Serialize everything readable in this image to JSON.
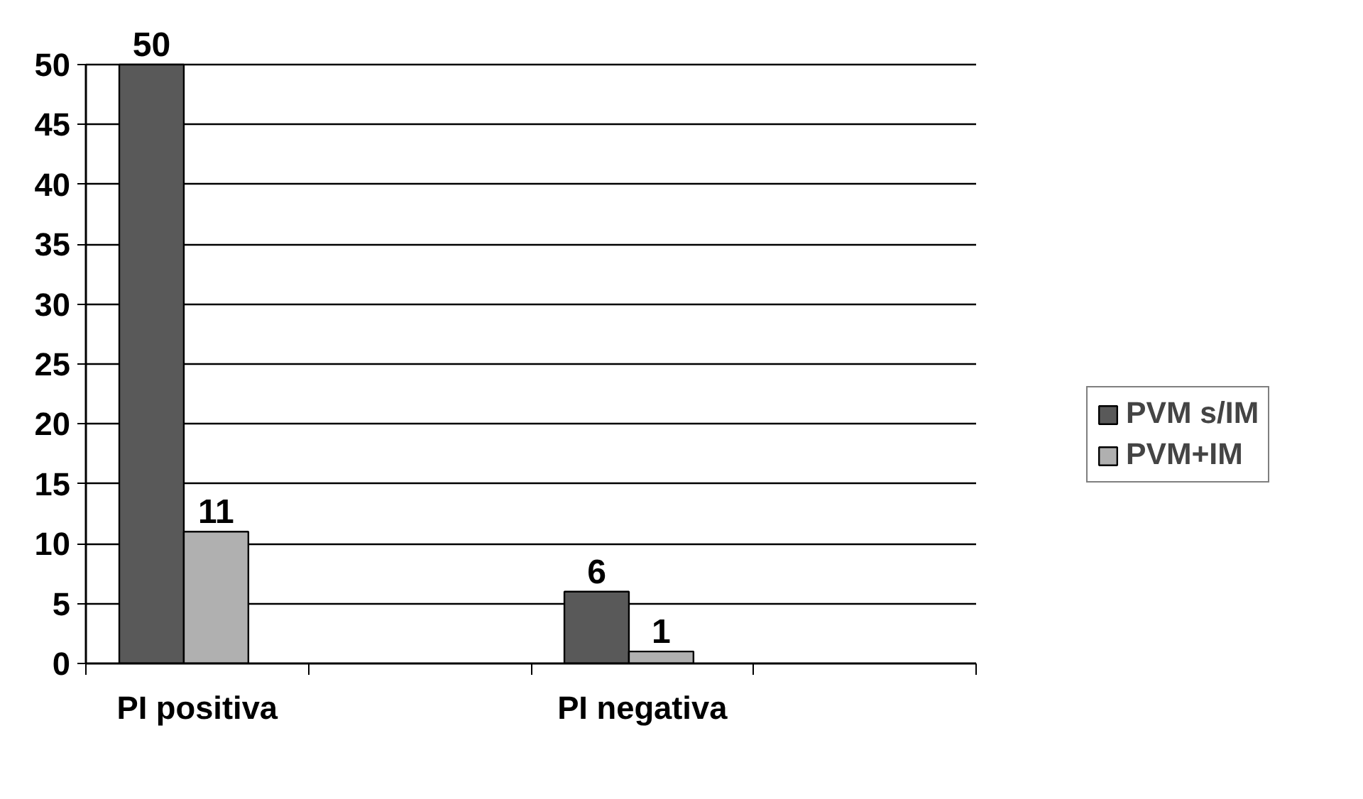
{
  "chart_data": {
    "type": "bar",
    "categories": [
      "PI positiva",
      null,
      "PI negativa",
      null
    ],
    "series": [
      {
        "name": "PVM s/IM",
        "color": "#595959",
        "values": [
          50,
          null,
          6,
          null
        ]
      },
      {
        "name": "PVM+IM",
        "color": "#b0b0b0",
        "values": [
          11,
          null,
          1,
          null
        ]
      }
    ],
    "ylim": [
      0,
      50
    ],
    "yticks": [
      0,
      5,
      10,
      15,
      20,
      25,
      30,
      35,
      40,
      45,
      50
    ],
    "grid": "y",
    "legend": "right",
    "data_labels": true
  }
}
